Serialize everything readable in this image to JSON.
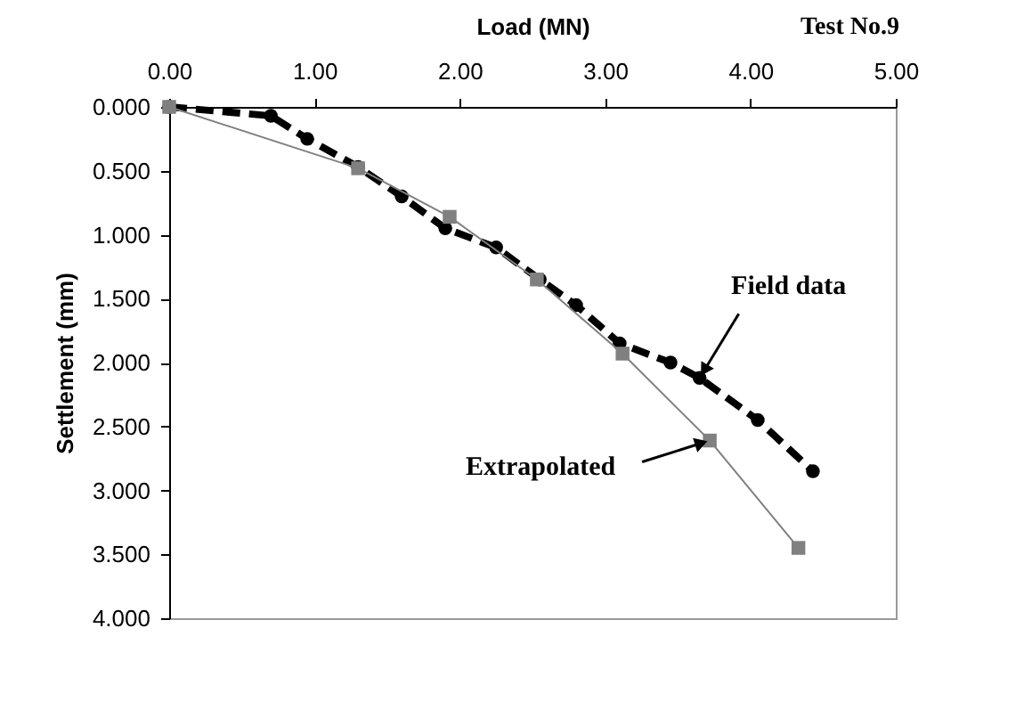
{
  "chart_data": {
    "type": "line",
    "xlabel": "Load (MN)",
    "ylabel": "Settlement (mm)",
    "xlim": [
      0,
      5
    ],
    "xticks": [
      {
        "value": 0,
        "label": "0.00"
      },
      {
        "value": 1,
        "label": "1.00"
      },
      {
        "value": 2,
        "label": "2.00"
      },
      {
        "value": 3,
        "label": "3.00"
      },
      {
        "value": 4,
        "label": "4.00"
      },
      {
        "value": 5,
        "label": "5.00"
      }
    ],
    "ylim": [
      4,
      0
    ],
    "yticks": [
      {
        "value": 0,
        "label": "0.000"
      },
      {
        "value": 0.5,
        "label": "0.500"
      },
      {
        "value": 1,
        "label": "1.000"
      },
      {
        "value": 1.5,
        "label": "1.500"
      },
      {
        "value": 2,
        "label": "2.000"
      },
      {
        "value": 2.5,
        "label": "2.500"
      },
      {
        "value": 3,
        "label": "3.000"
      },
      {
        "value": 3.5,
        "label": "3.500"
      },
      {
        "value": 4,
        "label": "4.000"
      }
    ],
    "grid": false,
    "series": [
      {
        "color": "#000000",
        "marker": "circle",
        "line_style": "dashed",
        "x": [
          0,
          0.7,
          0.95,
          1.3,
          1.6,
          1.9,
          2.25,
          2.55,
          2.8,
          3.1,
          3.45,
          3.65,
          4.05,
          4.43
        ],
        "values": [
          0,
          0.07,
          0.25,
          0.47,
          0.7,
          0.95,
          1.1,
          1.35,
          1.55,
          1.85,
          2.0,
          2.12,
          2.45,
          2.85
        ]
      },
      {
        "color": "#808080",
        "marker": "square",
        "line_style": "solid",
        "x": [
          0,
          1.3,
          1.93,
          2.53,
          3.12,
          3.72,
          4.33
        ],
        "values": [
          0,
          0.48,
          0.86,
          1.35,
          1.93,
          2.61,
          3.45
        ]
      }
    ],
    "annotations": [
      "Test No.9",
      {
        "text": "Field data",
        "x": 3.65,
        "y": 2.12
      },
      {
        "text": "Extrapolated",
        "x": 3.72,
        "y": 2.61
      }
    ]
  }
}
